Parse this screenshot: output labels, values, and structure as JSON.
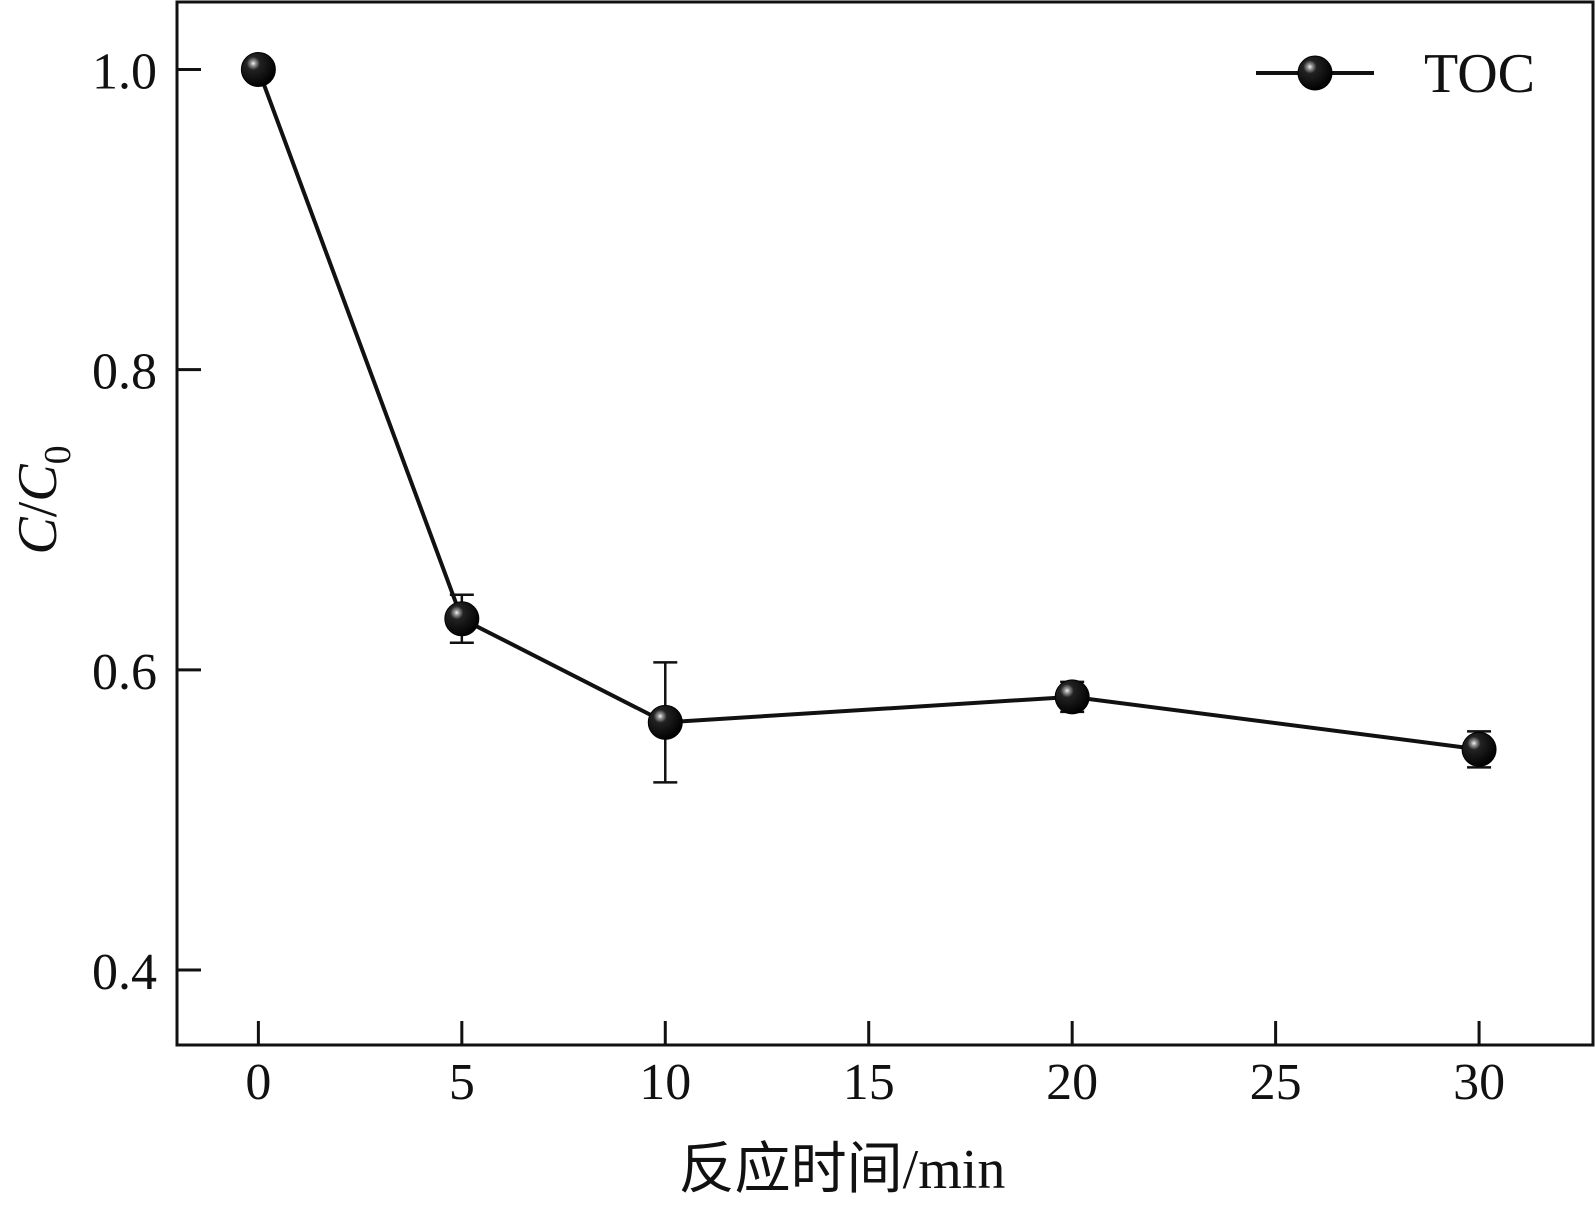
{
  "chart_data": {
    "type": "line",
    "title": "",
    "xlabel": "反应时间/min",
    "ylabel": {
      "main": "C",
      "slash": "/",
      "sub_base": "C",
      "subscript": "0"
    },
    "x_ticks": [
      "0",
      "5",
      "10",
      "15",
      "20",
      "25",
      "30"
    ],
    "y_ticks": [
      "0.4",
      "0.6",
      "0.8",
      "1.0"
    ],
    "xlim": [
      -2,
      32.8
    ],
    "ylim": [
      0.35,
      1.045
    ],
    "grid": false,
    "legend": {
      "placement": "top-right",
      "entries": [
        "TOC"
      ]
    },
    "series": [
      {
        "name": "TOC",
        "color": "#111111",
        "points": [
          {
            "x": 0,
            "y": 1.0,
            "err": 0.0
          },
          {
            "x": 5,
            "y": 0.634,
            "err": 0.016
          },
          {
            "x": 10,
            "y": 0.565,
            "err": 0.04
          },
          {
            "x": 20,
            "y": 0.582,
            "err": 0.01
          },
          {
            "x": 30,
            "y": 0.547,
            "err": 0.012
          }
        ]
      }
    ]
  }
}
